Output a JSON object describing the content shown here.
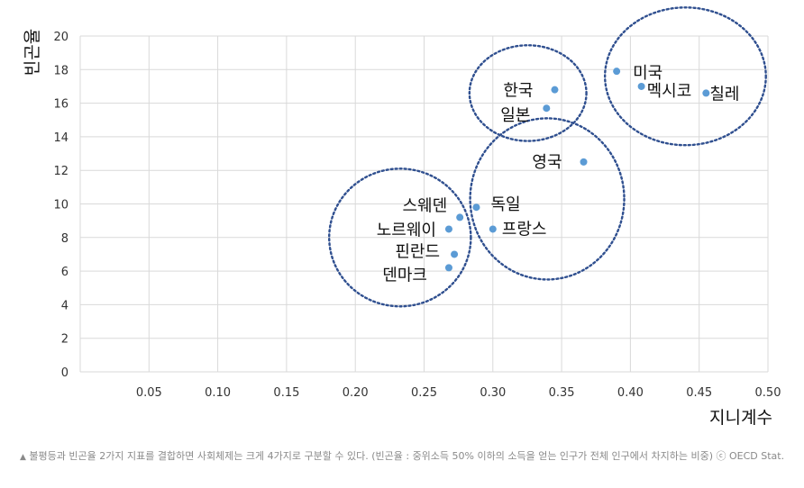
{
  "chart_data": {
    "type": "scatter",
    "xlabel": "지니계수",
    "ylabel": "빈곤율",
    "xlim": [
      0,
      0.5
    ],
    "ylim": [
      0,
      20
    ],
    "xticks": [
      "0.05",
      "0.10",
      "0.15",
      "0.20",
      "0.25",
      "0.30",
      "0.35",
      "0.40",
      "0.45",
      "0.50"
    ],
    "yticks": [
      "0",
      "2",
      "4",
      "6",
      "8",
      "10",
      "12",
      "14",
      "16",
      "18",
      "20"
    ],
    "grid": true,
    "marker_color": "#5b9bd5",
    "points": [
      {
        "label": "미국",
        "x": 0.39,
        "y": 17.9
      },
      {
        "label": "멕시코",
        "x": 0.408,
        "y": 17.0
      },
      {
        "label": "칠레",
        "x": 0.455,
        "y": 16.6
      },
      {
        "label": "한국",
        "x": 0.345,
        "y": 16.8
      },
      {
        "label": "일본",
        "x": 0.339,
        "y": 15.7
      },
      {
        "label": "영국",
        "x": 0.366,
        "y": 12.5
      },
      {
        "label": "독일",
        "x": 0.288,
        "y": 9.8
      },
      {
        "label": "프랑스",
        "x": 0.3,
        "y": 8.5
      },
      {
        "label": "스웨덴",
        "x": 0.276,
        "y": 9.2
      },
      {
        "label": "노르웨이",
        "x": 0.268,
        "y": 8.5
      },
      {
        "label": "핀란드",
        "x": 0.272,
        "y": 7.0
      },
      {
        "label": "덴마크",
        "x": 0.268,
        "y": 6.2
      }
    ],
    "clusters": [
      {
        "cx": 0.44,
        "cy": 17.6,
        "rx": 0.0585,
        "ry": 4.1
      },
      {
        "cx": 0.3255,
        "cy": 16.6,
        "rx": 0.0425,
        "ry": 2.85
      },
      {
        "cx": 0.3395,
        "cy": 10.3,
        "rx": 0.056,
        "ry": 4.8
      },
      {
        "cx": 0.2325,
        "cy": 8.0,
        "rx": 0.0515,
        "ry": 4.1
      }
    ],
    "cluster_color": "#2f4f8f"
  },
  "caption": "불평등과 빈곤율 2가지 지표를 결합하면 사회체제는 크게 4가지로 구분할 수 있다. (빈곤율 : 중위소득 50% 이하의 소득을 얻는 인구가 전체 인구에서 차지하는 비중) ⓒ OECD Stat.",
  "caption_marker": "▲"
}
